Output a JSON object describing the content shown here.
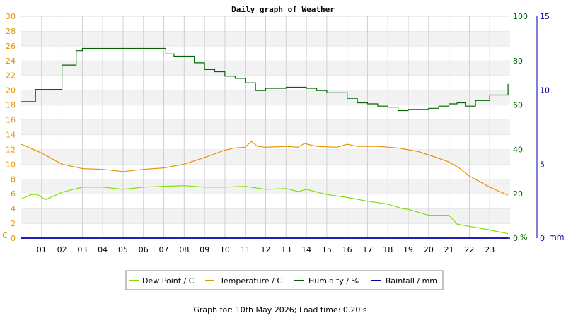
{
  "chart_data": {
    "type": "line",
    "title": "Daily graph of Weather",
    "footer": "Graph for: 10th May 2026; Load time: 0.20 s",
    "x_ticks": [
      "01",
      "02",
      "03",
      "04",
      "05",
      "06",
      "07",
      "08",
      "09",
      "10",
      "11",
      "12",
      "13",
      "14",
      "15",
      "16",
      "17",
      "18",
      "19",
      "20",
      "21",
      "22",
      "23"
    ],
    "x_range_hours": [
      0,
      24
    ],
    "grid": true,
    "legend_placement": "bottom",
    "axes": {
      "left": {
        "unit_label": "C",
        "range": [
          0,
          30
        ],
        "ticks": [
          0,
          2,
          4,
          6,
          8,
          10,
          12,
          14,
          16,
          18,
          20,
          22,
          24,
          26,
          28,
          30
        ],
        "color": "#e69500"
      },
      "right1": {
        "unit_label": "%",
        "range": [
          0,
          100
        ],
        "ticks": [
          0,
          20,
          40,
          60,
          80,
          100
        ],
        "color": "#006400"
      },
      "right2": {
        "unit_label": "mm",
        "range": [
          0,
          15
        ],
        "ticks": [
          0,
          5,
          10,
          15
        ],
        "color": "#0000aa"
      }
    },
    "series": [
      {
        "name": "Dew Point / C",
        "axis": "left",
        "color": "#7fe000",
        "points": [
          [
            0,
            5.3
          ],
          [
            0.5,
            5.9
          ],
          [
            0.8,
            5.9
          ],
          [
            1.2,
            5.2
          ],
          [
            2,
            6.2
          ],
          [
            3,
            6.9
          ],
          [
            4,
            6.9
          ],
          [
            5,
            6.6
          ],
          [
            6,
            6.9
          ],
          [
            7,
            7.0
          ],
          [
            8,
            7.1
          ],
          [
            9,
            6.9
          ],
          [
            10,
            6.9
          ],
          [
            11,
            7.0
          ],
          [
            12,
            6.6
          ],
          [
            13,
            6.7
          ],
          [
            13.6,
            6.3
          ],
          [
            14,
            6.6
          ],
          [
            15,
            5.9
          ],
          [
            16,
            5.5
          ],
          [
            17,
            5.0
          ],
          [
            18,
            4.6
          ],
          [
            18.7,
            4.0
          ],
          [
            19,
            3.9
          ],
          [
            19.5,
            3.5
          ],
          [
            20,
            3.1
          ],
          [
            21,
            3.1
          ],
          [
            21.4,
            1.9
          ],
          [
            22,
            1.6
          ],
          [
            23,
            1.1
          ],
          [
            23.9,
            0.6
          ]
        ]
      },
      {
        "name": "Temperature / C",
        "axis": "left",
        "color": "#e69500",
        "points": [
          [
            0,
            12.7
          ],
          [
            1,
            11.5
          ],
          [
            2,
            10.0
          ],
          [
            3,
            9.4
          ],
          [
            4,
            9.3
          ],
          [
            5,
            9.0
          ],
          [
            6,
            9.3
          ],
          [
            7,
            9.5
          ],
          [
            8,
            10.0
          ],
          [
            9,
            10.9
          ],
          [
            10,
            11.9
          ],
          [
            10.5,
            12.2
          ],
          [
            11,
            12.3
          ],
          [
            11.3,
            13.1
          ],
          [
            11.6,
            12.4
          ],
          [
            12,
            12.3
          ],
          [
            13,
            12.4
          ],
          [
            13.6,
            12.3
          ],
          [
            13.9,
            12.8
          ],
          [
            14.5,
            12.4
          ],
          [
            15.5,
            12.3
          ],
          [
            16,
            12.7
          ],
          [
            16.5,
            12.4
          ],
          [
            17.5,
            12.4
          ],
          [
            18.5,
            12.2
          ],
          [
            19.5,
            11.7
          ],
          [
            20.5,
            10.8
          ],
          [
            21,
            10.3
          ],
          [
            21.5,
            9.5
          ],
          [
            22,
            8.4
          ],
          [
            23,
            6.9
          ],
          [
            23.9,
            5.8
          ]
        ]
      },
      {
        "name": "Humidity / %",
        "axis": "right1",
        "color": "#006400",
        "points": [
          [
            0,
            61.5
          ],
          [
            0.7,
            67
          ],
          [
            1.3,
            67
          ],
          [
            2,
            78
          ],
          [
            2.7,
            84.5
          ],
          [
            3,
            85.5
          ],
          [
            4,
            85.5
          ],
          [
            5,
            85.5
          ],
          [
            6.8,
            85.5
          ],
          [
            7.1,
            83
          ],
          [
            7.5,
            82
          ],
          [
            8,
            82
          ],
          [
            8.5,
            79
          ],
          [
            9,
            76
          ],
          [
            9.5,
            75
          ],
          [
            10,
            73
          ],
          [
            10.5,
            72
          ],
          [
            11,
            70
          ],
          [
            11.5,
            66.5
          ],
          [
            12,
            67.5
          ],
          [
            13,
            68
          ],
          [
            14,
            67.5
          ],
          [
            14.5,
            66.5
          ],
          [
            15,
            65.5
          ],
          [
            16,
            63
          ],
          [
            16.5,
            61
          ],
          [
            17,
            60.5
          ],
          [
            17.5,
            59.5
          ],
          [
            18,
            59
          ],
          [
            18.5,
            57.5
          ],
          [
            19,
            58
          ],
          [
            19.5,
            58
          ],
          [
            20,
            58.5
          ],
          [
            20.5,
            59.5
          ],
          [
            21,
            60.5
          ],
          [
            21.4,
            61
          ],
          [
            21.8,
            59.5
          ],
          [
            22.3,
            62
          ],
          [
            23,
            64.5
          ],
          [
            23.9,
            69.5
          ]
        ]
      },
      {
        "name": "Rainfall / mm",
        "axis": "right2",
        "color": "#0000aa",
        "points": [
          [
            0,
            0
          ],
          [
            23.9,
            0
          ]
        ]
      }
    ]
  }
}
